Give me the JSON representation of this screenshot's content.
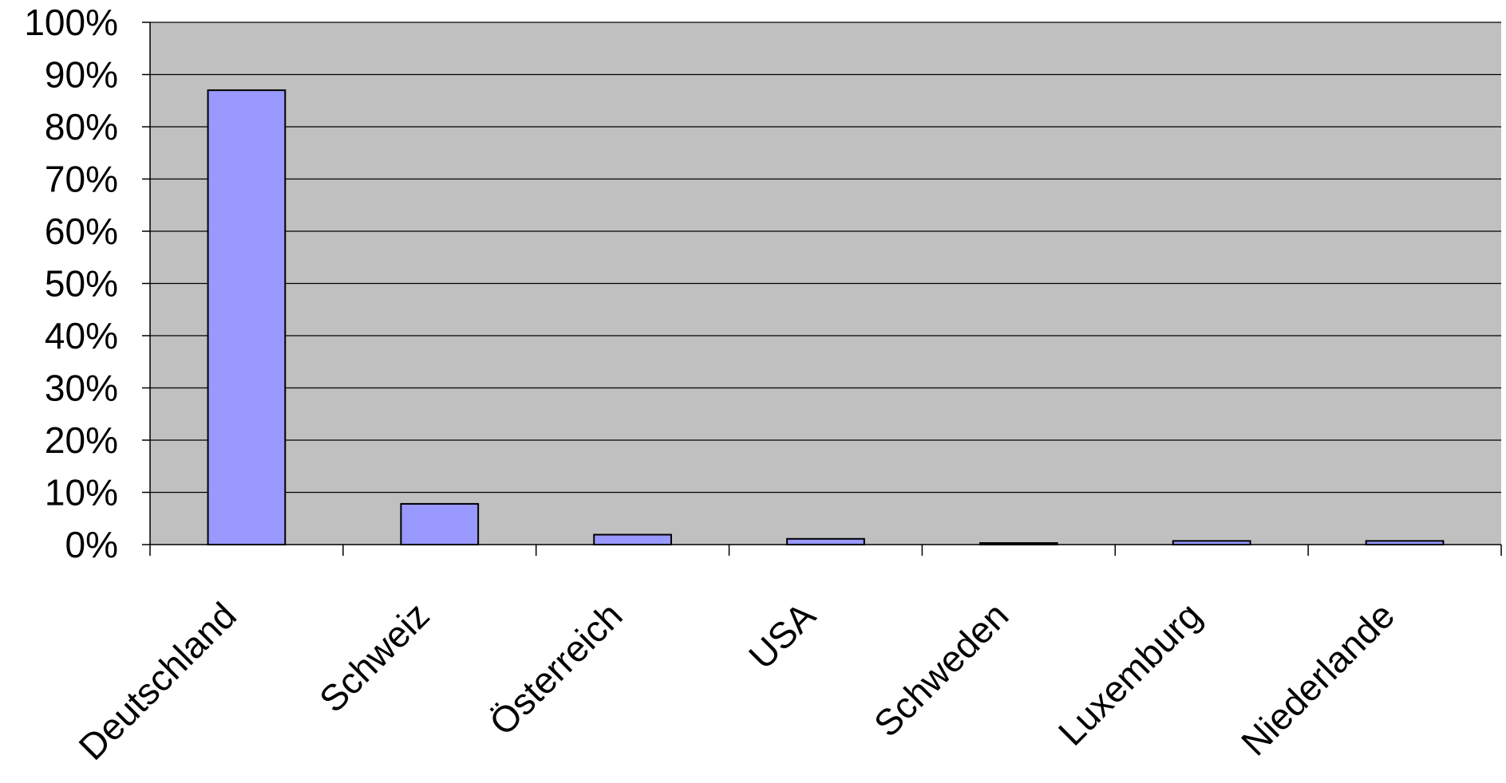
{
  "chart_data": {
    "type": "bar",
    "title": "",
    "xlabel": "",
    "ylabel": "",
    "categories": [
      "Deutschland",
      "Schweiz",
      "Österreich",
      "USA",
      "Schweden",
      "Luxemburg",
      "Niederlande"
    ],
    "values": [
      87,
      7.8,
      1.9,
      1.1,
      0.3,
      0.7,
      0.7
    ],
    "ylim": [
      0,
      100
    ],
    "y_ticks": [
      "0%",
      "10%",
      "20%",
      "30%",
      "40%",
      "50%",
      "60%",
      "70%",
      "80%",
      "90%",
      "100%"
    ],
    "y_unit": "%",
    "grid": true,
    "legend": "none",
    "colors": {
      "plot_background": "#c0c0c0",
      "bar_fill": "#9999ff",
      "bar_stroke": "#000000",
      "gridline": "#000000"
    }
  }
}
